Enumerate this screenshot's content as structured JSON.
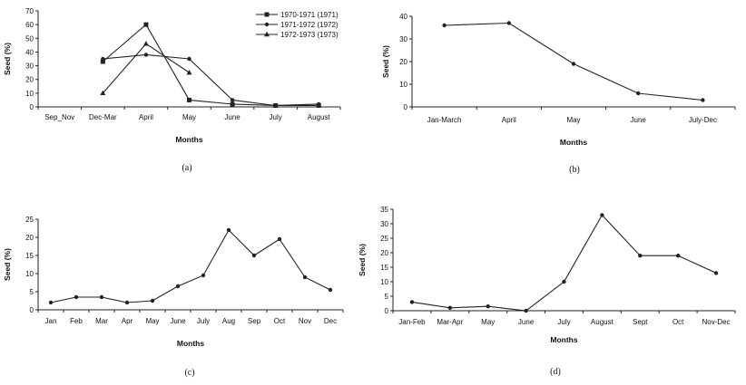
{
  "chart_data": [
    {
      "type": "line",
      "panel_label": "(a)",
      "xlabel": "Months",
      "ylabel": "Seed (%)",
      "ylim": [
        0,
        70
      ],
      "y_ticks": [
        "0",
        "10",
        "20",
        "30",
        "40",
        "50",
        "60",
        "70"
      ],
      "categories": [
        "Sep_Nov",
        "Dec-Mar",
        "April",
        "May",
        "June",
        "July",
        "August"
      ],
      "legend_position": "top-right",
      "series": [
        {
          "name": "1970-1971 (1971)",
          "marker": "dash",
          "values": [
            null,
            33,
            60,
            5,
            2,
            1,
            1
          ]
        },
        {
          "name": "1971-1972 (1972)",
          "marker": "circle",
          "values": [
            null,
            35,
            38,
            35,
            5,
            1,
            2
          ]
        },
        {
          "name": "1972-1973 (1973)",
          "marker": "triangle",
          "values": [
            null,
            10,
            46,
            25,
            null,
            null,
            null
          ]
        }
      ]
    },
    {
      "type": "line",
      "panel_label": "(b)",
      "xlabel": "Months",
      "ylabel": "Seed (%)",
      "ylim": [
        0,
        40
      ],
      "y_ticks": [
        "0",
        "10",
        "20",
        "30",
        "40"
      ],
      "categories": [
        "Jan-March",
        "April",
        "May",
        "June",
        "July-Dec"
      ],
      "series": [
        {
          "values": [
            36,
            37,
            19,
            6,
            3
          ]
        }
      ]
    },
    {
      "type": "line",
      "panel_label": "(c)",
      "xlabel": "Months",
      "ylabel": "Seed (%)",
      "ylim": [
        0,
        25
      ],
      "y_ticks": [
        "0",
        "5",
        "10",
        "15",
        "20",
        "25"
      ],
      "categories": [
        "Jan",
        "Feb",
        "Mar",
        "Apr",
        "May",
        "June",
        "July",
        "Aug",
        "Sep",
        "Oct",
        "Nov",
        "Dec"
      ],
      "series": [
        {
          "values": [
            2,
            3.5,
            3.5,
            2,
            2.5,
            6.5,
            9.5,
            22,
            15,
            19.5,
            9,
            5.5
          ]
        }
      ]
    },
    {
      "type": "line",
      "panel_label": "(d)",
      "xlabel": "Months",
      "ylabel": "Seed (%)",
      "ylim": [
        0,
        35
      ],
      "y_ticks": [
        "0",
        "5",
        "10",
        "15",
        "20",
        "25",
        "30",
        "35"
      ],
      "categories": [
        "Jan-Feb",
        "Mar-Apr",
        "May",
        "June",
        "July",
        "August",
        "Sept",
        "Oct",
        "Nov-Dec"
      ],
      "series": [
        {
          "values": [
            3,
            1,
            1.5,
            0,
            10,
            33,
            19,
            19,
            13
          ]
        }
      ]
    }
  ]
}
